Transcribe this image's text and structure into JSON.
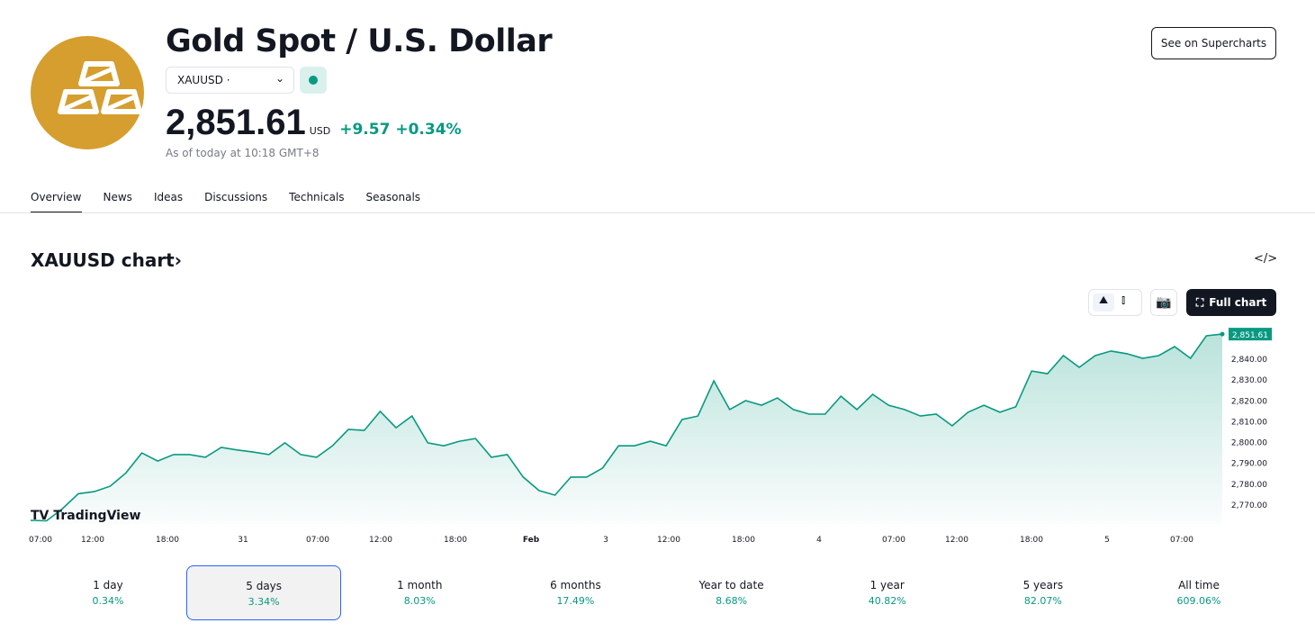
{
  "header": {
    "title": "Gold Spot / U.S. Dollar",
    "symbol": "XAUUSD",
    "symbol_dot": "·",
    "price": "2,851.61",
    "currency": "USD",
    "change": "+9.57",
    "change_pct": "+0.34%",
    "as_of": "As of today at 10:18 GMT+8",
    "supercharts": "See on Supercharts",
    "logo_color": "#d69e2e",
    "up_color": "#089981"
  },
  "tabs": [
    "Overview",
    "News",
    "Ideas",
    "Discussions",
    "Technicals",
    "Seasonals"
  ],
  "chart_section": {
    "title": "XAUUSD chart",
    "chevron": "›",
    "embed_icon": "</>",
    "full_chart": "Full chart",
    "watermark": "TradingView"
  },
  "chart_data": {
    "type": "area",
    "color": "#089981",
    "y_ticks": [
      "2,770.00",
      "2,780.00",
      "2,790.00",
      "2,800.00",
      "2,810.00",
      "2,820.00",
      "2,830.00",
      "2,840.00"
    ],
    "ylim": [
      2758,
      2852
    ],
    "last_label": "2,851.61",
    "x_ticks": [
      "07:00",
      "12:00",
      "18:00",
      "31",
      "07:00",
      "12:00",
      "18:00",
      "Feb",
      "3",
      "12:00",
      "18:00",
      "4",
      "07:00",
      "12:00",
      "18:00",
      "5",
      "07:00"
    ],
    "values": [
      2762.2,
      2762,
      2767.8,
      2775,
      2776,
      2778.6,
      2785,
      2794.6,
      2790.7,
      2793.8,
      2793.8,
      2792.5,
      2797.2,
      2796,
      2795,
      2793.8,
      2799.4,
      2793.8,
      2792.5,
      2798,
      2805.9,
      2805.4,
      2814.5,
      2806.7,
      2812.3,
      2799.4,
      2798,
      2800.2,
      2801.5,
      2792.5,
      2793.8,
      2783,
      2776.5,
      2774.3,
      2783,
      2783,
      2787.3,
      2798,
      2798,
      2800.2,
      2798,
      2810.6,
      2812.3,
      2829.2,
      2815.4,
      2819.7,
      2817.5,
      2821,
      2815.4,
      2813.2,
      2813.2,
      2821.8,
      2815.4,
      2822.7,
      2817.5,
      2815.4,
      2812.3,
      2813.2,
      2807.6,
      2814.1,
      2817.5,
      2814.1,
      2816.7,
      2833.9,
      2832.6,
      2841.3,
      2835.7,
      2841.3,
      2843.5,
      2842.2,
      2840,
      2841.3,
      2845.6,
      2840,
      2850.8,
      2851.61
    ]
  },
  "periods": [
    {
      "label": "1 day",
      "value": "0.34%"
    },
    {
      "label": "5 days",
      "value": "3.34%",
      "selected": true
    },
    {
      "label": "1 month",
      "value": "8.03%"
    },
    {
      "label": "6 months",
      "value": "17.49%"
    },
    {
      "label": "Year to date",
      "value": "8.68%"
    },
    {
      "label": "1 year",
      "value": "40.82%"
    },
    {
      "label": "5 years",
      "value": "82.07%"
    },
    {
      "label": "All time",
      "value": "609.06%"
    }
  ]
}
